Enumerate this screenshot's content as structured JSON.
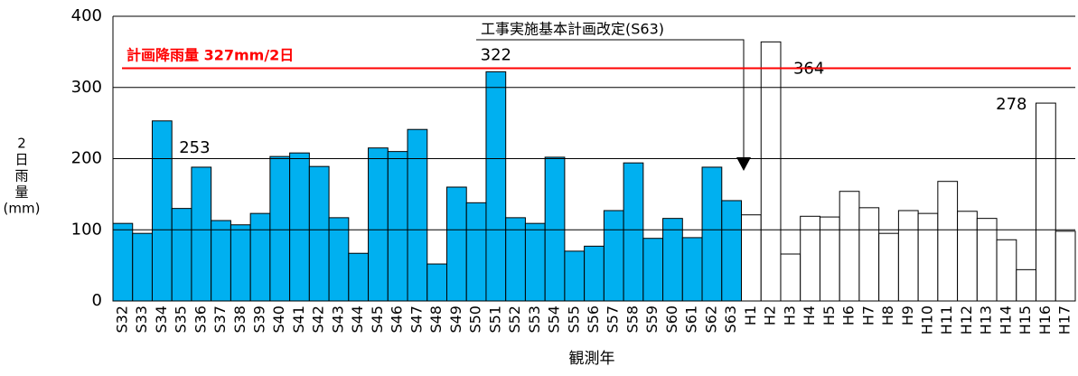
{
  "chart_data": {
    "type": "bar",
    "categories": [
      "S32",
      "S33",
      "S34",
      "S35",
      "S36",
      "S37",
      "S38",
      "S39",
      "S40",
      "S41",
      "S42",
      "S43",
      "S44",
      "S45",
      "S46",
      "S47",
      "S48",
      "S49",
      "S50",
      "S51",
      "S52",
      "S53",
      "S54",
      "S55",
      "S56",
      "S57",
      "S58",
      "S59",
      "S60",
      "S61",
      "S62",
      "S63",
      "H1",
      "H2",
      "H3",
      "H4",
      "H5",
      "H6",
      "H7",
      "H8",
      "H9",
      "H10",
      "H11",
      "H12",
      "H13",
      "H14",
      "H15",
      "H16",
      "H17"
    ],
    "values": [
      109,
      95,
      253,
      130,
      188,
      113,
      107,
      123,
      203,
      208,
      189,
      117,
      67,
      215,
      210,
      241,
      52,
      160,
      138,
      322,
      117,
      109,
      202,
      70,
      77,
      127,
      194,
      88,
      116,
      89,
      188,
      141,
      121,
      364,
      66,
      119,
      118,
      154,
      131,
      95,
      127,
      123,
      168,
      126,
      116,
      86,
      44,
      278,
      98
    ],
    "colors": [
      "#00b0f0",
      "#00b0f0",
      "#00b0f0",
      "#00b0f0",
      "#00b0f0",
      "#00b0f0",
      "#00b0f0",
      "#00b0f0",
      "#00b0f0",
      "#00b0f0",
      "#00b0f0",
      "#00b0f0",
      "#00b0f0",
      "#00b0f0",
      "#00b0f0",
      "#00b0f0",
      "#00b0f0",
      "#00b0f0",
      "#00b0f0",
      "#00b0f0",
      "#00b0f0",
      "#00b0f0",
      "#00b0f0",
      "#00b0f0",
      "#00b0f0",
      "#00b0f0",
      "#00b0f0",
      "#00b0f0",
      "#00b0f0",
      "#00b0f0",
      "#00b0f0",
      "#00b0f0",
      "#ffffff",
      "#ffffff",
      "#ffffff",
      "#ffffff",
      "#ffffff",
      "#ffffff",
      "#ffffff",
      "#ffffff",
      "#ffffff",
      "#ffffff",
      "#ffffff",
      "#ffffff",
      "#ffffff",
      "#ffffff",
      "#ffffff",
      "#ffffff",
      "#ffffff"
    ],
    "labeled_categories": [
      "S34",
      "S51",
      "H2",
      "H16"
    ],
    "ylim": [
      0,
      400
    ],
    "yticks": [
      0,
      100,
      200,
      300,
      400
    ],
    "grid": true,
    "x_label": "観測年",
    "y_label": [
      "2",
      "日",
      "雨",
      "量",
      "(mm)"
    ],
    "reference_line": {
      "value": 327,
      "label": "計画降雨量 327mm/2日",
      "color": "#ff0000"
    },
    "annotation": "工事実施基本計画改定(S63)"
  }
}
